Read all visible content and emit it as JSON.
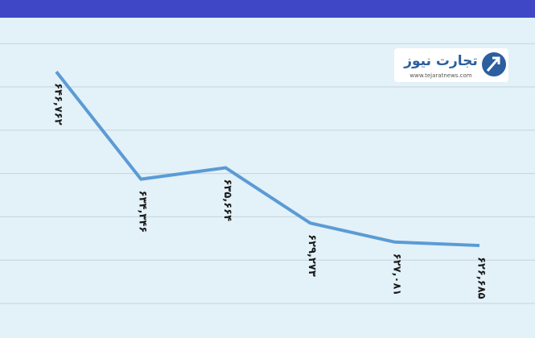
{
  "chart_data": {
    "type": "line",
    "values": [
      646762,
      634346,
      635664,
      629273,
      627081,
      626685
    ],
    "value_labels": [
      "۶۴۶,۷۶۲",
      "۶۳۴,۳۴۶",
      "۶۳۵,۶۶۴",
      "۶۲۹,۲۷۳",
      "۶۲۷,۰۸۱",
      "۶۲۶,۶۸۵"
    ],
    "color": "#5b9bd5",
    "ylim": [
      616000,
      653000
    ],
    "yticks": [
      620000,
      625000,
      630000,
      635000,
      640000,
      645000,
      650000
    ],
    "grid": true
  },
  "logo": {
    "name": "تجارت نیوز",
    "url": "www.tejaratnews.com"
  }
}
